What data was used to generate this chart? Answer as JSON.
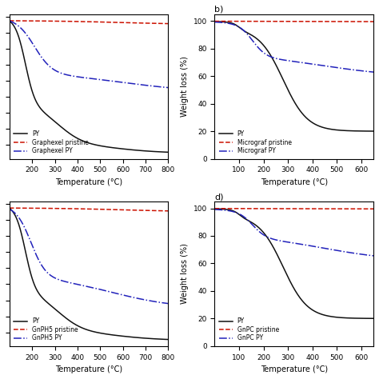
{
  "subplot_a": {
    "legend": [
      "— PY",
      "- Graphexel pristine",
      "· Graphexel PY"
    ],
    "legend_labels": [
      "PY",
      "Graphexel pristine",
      "Graphexel PY"
    ]
  },
  "subplot_b": {
    "title": "b)",
    "ylabel": "Weight loss (%)",
    "yticks": [
      0,
      20,
      40,
      60,
      80,
      100
    ],
    "legend_labels": [
      "PY",
      "Micrograf pristine",
      "Micrograf PY"
    ]
  },
  "subplot_c": {
    "legend_labels": [
      "PY",
      "GnPH5 pristine",
      "GnPH5 PY"
    ]
  },
  "subplot_d": {
    "title": "d)",
    "ylabel": "Weight loss (%)",
    "yticks": [
      0,
      20,
      40,
      60,
      80,
      100
    ],
    "legend_labels": [
      "PY",
      "GnPC pristine",
      "GnPC PY"
    ]
  },
  "colors": {
    "PY": "#111111",
    "pristine": "#cc1100",
    "PY_graphite": "#2222bb"
  },
  "background": "#ffffff",
  "xlabel": "Temperature (°C)"
}
